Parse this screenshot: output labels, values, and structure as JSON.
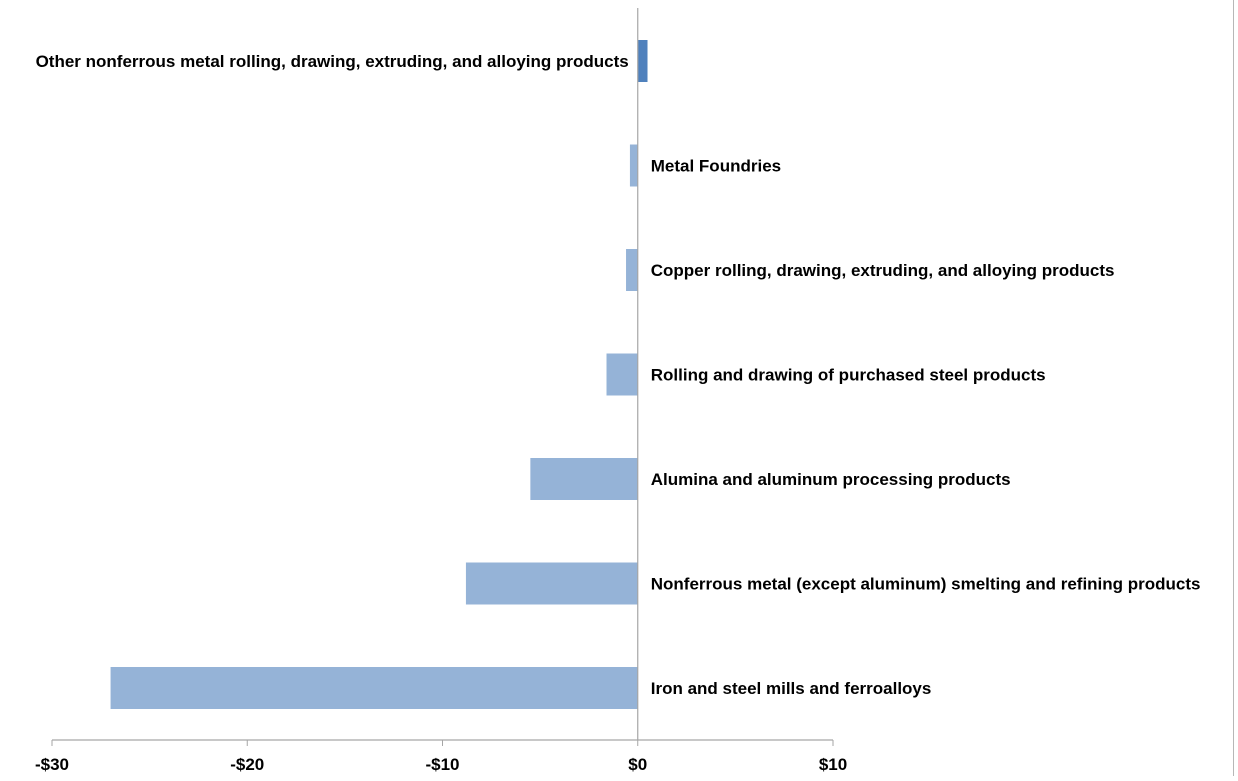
{
  "chart_data": {
    "type": "bar",
    "orientation": "horizontal",
    "title": "",
    "xlabel": "",
    "ylabel": "",
    "xlim": [
      -30,
      10
    ],
    "x_ticks": [
      -30,
      -20,
      -10,
      0,
      10
    ],
    "x_tick_labels": [
      "-$30",
      "-$20",
      "-$10",
      "$0",
      "$10"
    ],
    "grid": false,
    "legend": "none",
    "categories": [
      "Other nonferrous metal rolling, drawing, extruding, and alloying products",
      "Metal Foundries",
      "Copper rolling, drawing, extruding, and alloying products",
      "Rolling and drawing of purchased steel products",
      "Alumina and aluminum processing products",
      "Nonferrous metal (except aluminum) smelting and refining products",
      "Iron and steel mills and ferroalloys"
    ],
    "values": [
      0.5,
      -0.4,
      -0.6,
      -1.6,
      -5.5,
      -8.8,
      -27.0
    ],
    "colors": {
      "positive": "#4f81bd",
      "negative": "#95b3d7",
      "axis": "#a6a6a6",
      "text": "#000000"
    }
  }
}
